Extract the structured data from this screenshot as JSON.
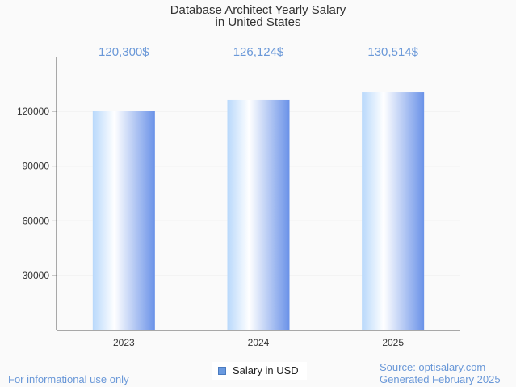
{
  "header": {
    "title_line1": "Database Architect Yearly Salary",
    "title_line2": "in United States"
  },
  "legend": {
    "label": "Salary in USD",
    "color": "#6a9ae0"
  },
  "footer": {
    "disclaimer": "For informational use only",
    "source": "Source: optisalary.com",
    "generated": "Generated February 2025"
  },
  "chart_data": {
    "type": "bar",
    "categories": [
      "2023",
      "2024",
      "2025"
    ],
    "values": [
      120300,
      126124,
      130514
    ],
    "data_labels": [
      "120,300$",
      "126,124$",
      "130,514$"
    ],
    "yticks": [
      "30000",
      "60000",
      "90000",
      "120000"
    ],
    "ylim": [
      0,
      150000
    ],
    "grid": true,
    "legend_position": "bottom",
    "colors": {
      "bar_light": "#ffffff",
      "bar_mid": "#b8d8fb",
      "bar_dark": "#6a92e8",
      "label": "#6a98d8",
      "grid": "#dddddd",
      "axis": "#555555"
    }
  }
}
